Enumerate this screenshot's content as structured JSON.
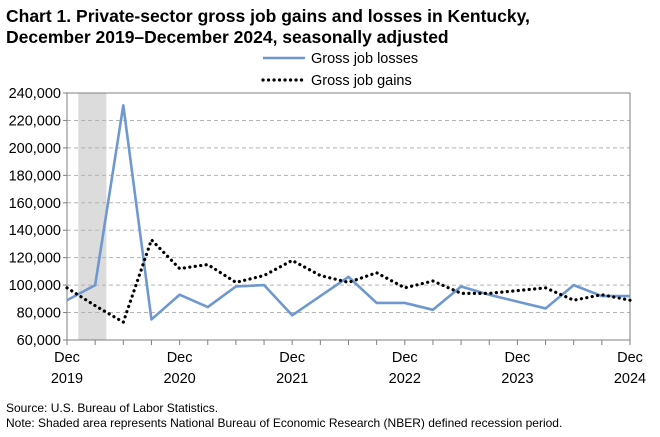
{
  "title": {
    "line1": "Chart 1. Private-sector gross job gains and losses in Kentucky,",
    "line2": "December 2019–December 2024, seasonally adjusted"
  },
  "notes": {
    "source": "Source: U.S. Bureau of Labor Statistics.",
    "note": "Note: Shaded area represents National Bureau of Economic Research (NBER) defined  recession period."
  },
  "chart_data": {
    "type": "line",
    "title": "Private-sector gross job gains and losses in Kentucky, December 2019–December 2024, seasonally adjusted",
    "xlabel": "",
    "ylabel": "",
    "ylim": [
      60000,
      240000
    ],
    "y_ticks": [
      60000,
      80000,
      100000,
      120000,
      140000,
      160000,
      180000,
      200000,
      220000,
      240000
    ],
    "y_tick_labels": [
      "60,000",
      "80,000",
      "100,000",
      "120,000",
      "140,000",
      "160,000",
      "180,000",
      "200,000",
      "220,000",
      "240,000"
    ],
    "x_ticks": [
      {
        "index": 0,
        "label1": "Dec",
        "label2": "2019"
      },
      {
        "index": 4,
        "label1": "Dec",
        "label2": "2020"
      },
      {
        "index": 8,
        "label1": "Dec",
        "label2": "2021"
      },
      {
        "index": 12,
        "label1": "Dec",
        "label2": "2022"
      },
      {
        "index": 16,
        "label1": "Dec",
        "label2": "2023"
      },
      {
        "index": 20,
        "label1": "Dec",
        "label2": "2024"
      }
    ],
    "categories": [
      "Dec 2019",
      "Mar 2020",
      "Jun 2020",
      "Sep 2020",
      "Dec 2020",
      "Mar 2021",
      "Jun 2021",
      "Sep 2021",
      "Dec 2021",
      "Mar 2022",
      "Jun 2022",
      "Sep 2022",
      "Dec 2022",
      "Mar 2023",
      "Jun 2023",
      "Sep 2023",
      "Dec 2023",
      "Mar 2024",
      "Jun 2024",
      "Sep 2024",
      "Dec 2024"
    ],
    "grid": true,
    "legend_position": "top",
    "recession": {
      "start_index": 0.4,
      "end_index": 1.4
    },
    "series": [
      {
        "name": "Gross job losses",
        "style": "solid",
        "color": "#6f98d0",
        "values": [
          89000,
          100000,
          231000,
          75000,
          93000,
          84000,
          99000,
          100000,
          78000,
          92000,
          106000,
          87000,
          87000,
          82000,
          99000,
          93000,
          88000,
          83000,
          100000,
          92000,
          92000
        ]
      },
      {
        "name": "Gross job gains",
        "style": "dotted",
        "color": "#000000",
        "values": [
          98000,
          85000,
          73000,
          133000,
          112000,
          115000,
          102000,
          107000,
          118000,
          107000,
          102000,
          109000,
          98000,
          103000,
          94000,
          94000,
          96000,
          98000,
          89000,
          93000,
          89000
        ]
      }
    ]
  }
}
